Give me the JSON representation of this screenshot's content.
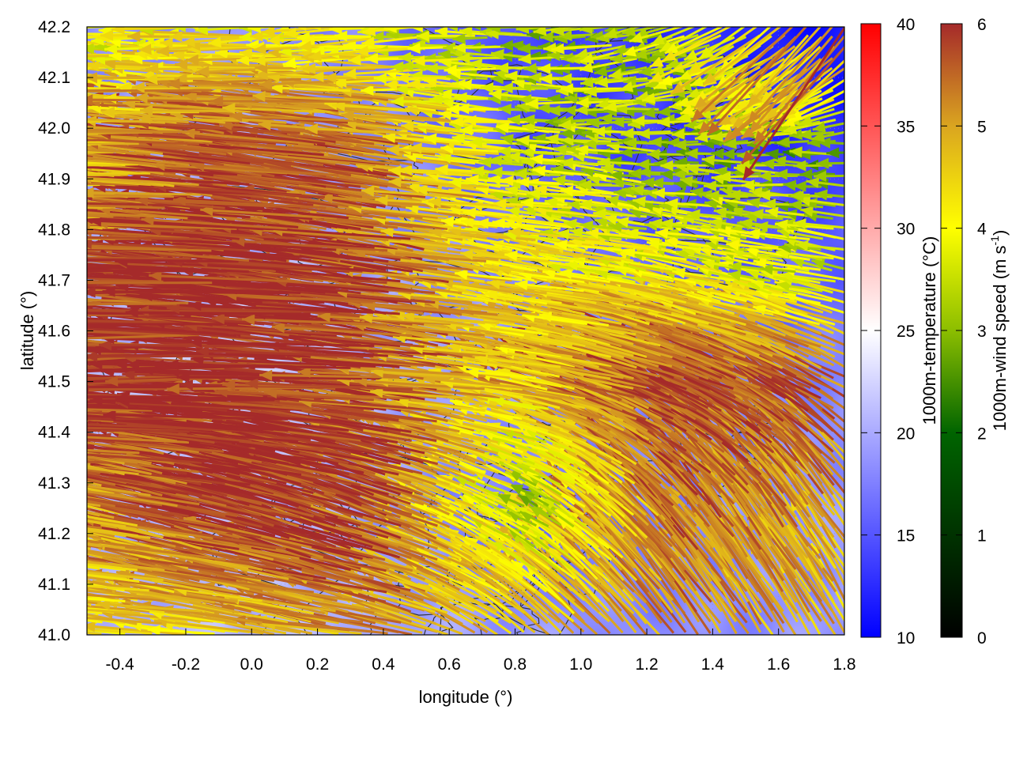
{
  "chart_data": {
    "type": "vector-field",
    "xlabel": "longitude (°)",
    "ylabel": "latitude (°)",
    "xlim": [
      -0.5,
      1.8
    ],
    "ylim": [
      41.0,
      42.2
    ],
    "xticks": [
      "-0.4",
      "-0.2",
      "0.0",
      "0.2",
      "0.4",
      "0.6",
      "0.8",
      "1.0",
      "1.2",
      "1.4",
      "1.6",
      "1.8"
    ],
    "xtick_values": [
      -0.4,
      -0.2,
      0.0,
      0.2,
      0.4,
      0.6,
      0.8,
      1.0,
      1.2,
      1.4,
      1.6,
      1.8
    ],
    "yticks": [
      "41.0",
      "41.1",
      "41.2",
      "41.3",
      "41.4",
      "41.5",
      "41.6",
      "41.7",
      "41.8",
      "41.9",
      "42.0",
      "42.1",
      "42.2"
    ],
    "ytick_values": [
      41.0,
      41.1,
      41.2,
      41.3,
      41.4,
      41.5,
      41.6,
      41.7,
      41.8,
      41.9,
      42.0,
      42.1,
      42.2
    ],
    "grid": true,
    "temperature_colorbar": {
      "label": "1000m-temperature (°C)",
      "range": [
        10,
        40
      ],
      "ticks": [
        "10",
        "15",
        "20",
        "25",
        "30",
        "35",
        "40"
      ],
      "tick_values": [
        10,
        15,
        20,
        25,
        30,
        35,
        40
      ],
      "colors": [
        "#0000ff",
        "#ffffff",
        "#ff0000"
      ]
    },
    "wind_colorbar": {
      "label_main": "1000m-wind speed (m s",
      "label_sup": "-1",
      "label_end": ")",
      "range": [
        0,
        6
      ],
      "ticks": [
        "0",
        "1",
        "2",
        "3",
        "4",
        "5",
        "6"
      ],
      "tick_values": [
        0,
        1,
        2,
        3,
        4,
        5,
        6
      ],
      "colors": [
        "#000000",
        "#006400",
        "#8cbe00",
        "#ffff00",
        "#daa520",
        "#a52a2a"
      ]
    },
    "grid_lon": [
      -0.5,
      -0.04,
      0.42,
      0.88,
      1.34,
      1.8
    ],
    "grid_lat": [
      42.2,
      41.96,
      41.72,
      41.48,
      41.24,
      41.0
    ],
    "wind_speed": [
      [
        3.2,
        3.8,
        3.5,
        2.5,
        3.0,
        5.5
      ],
      [
        3.5,
        5.8,
        5.5,
        3.2,
        2.4,
        2.2
      ],
      [
        5.5,
        6.0,
        6.0,
        4.0,
        3.5,
        3.2
      ],
      [
        5.8,
        6.0,
        6.0,
        4.2,
        6.0,
        5.5
      ],
      [
        4.5,
        6.0,
        6.0,
        2.5,
        5.5,
        4.8
      ],
      [
        4.0,
        4.2,
        5.0,
        4.5,
        5.0,
        4.5
      ]
    ],
    "wind_direction_deg": [
      [
        180,
        180,
        185,
        178,
        200,
        235
      ],
      [
        178,
        172,
        170,
        175,
        178,
        180
      ],
      [
        178,
        175,
        172,
        170,
        168,
        170
      ],
      [
        180,
        178,
        175,
        170,
        160,
        150
      ],
      [
        168,
        165,
        160,
        150,
        130,
        125
      ],
      [
        175,
        172,
        170,
        140,
        125,
        120
      ]
    ],
    "temperature": [
      [
        18,
        19,
        17,
        14,
        13,
        11
      ],
      [
        19,
        20,
        18,
        15,
        14,
        13
      ],
      [
        20,
        21,
        19,
        18,
        16,
        16
      ],
      [
        21,
        22,
        20,
        19,
        18,
        18
      ],
      [
        20,
        21,
        19,
        16,
        18,
        19
      ],
      [
        20,
        21,
        20,
        19,
        18,
        19
      ]
    ]
  }
}
